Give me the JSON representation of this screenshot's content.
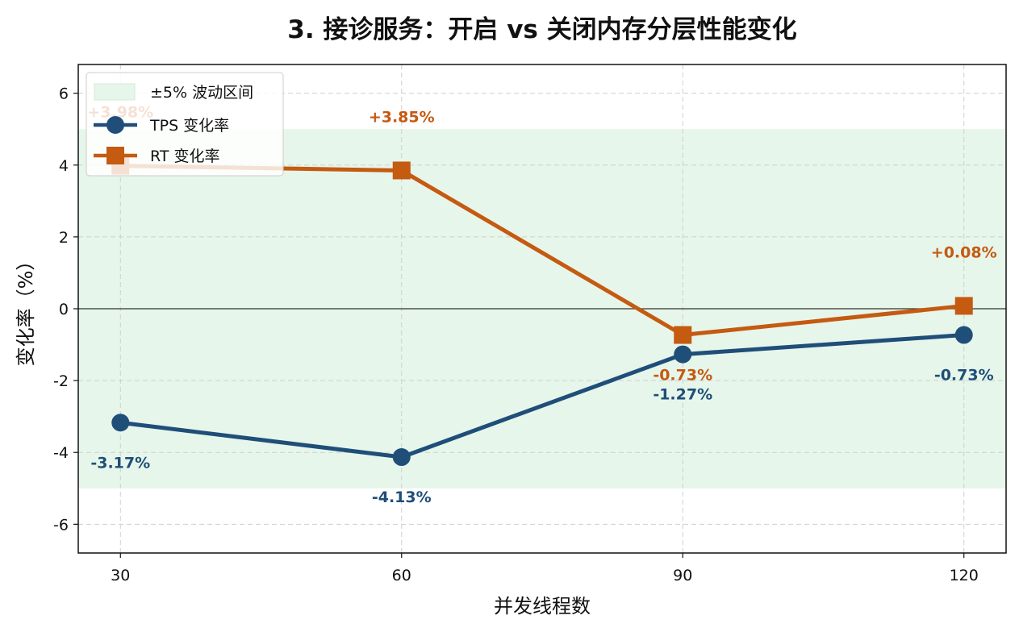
{
  "chart_data": {
    "type": "line",
    "title": "3. 接诊服务：开启 vs 关闭内存分层性能变化",
    "xlabel": "并发线程数",
    "ylabel": "变化率（%）",
    "x": [
      30,
      60,
      90,
      120
    ],
    "x_tick_labels": [
      "30",
      "60",
      "90",
      "120"
    ],
    "xlim": [
      25.5,
      124.5
    ],
    "ylim": [
      -6.8,
      6.8
    ],
    "y_ticks": [
      -6,
      -4,
      -2,
      0,
      2,
      4,
      6
    ],
    "y_tick_labels": [
      "-6",
      "-4",
      "-2",
      "0",
      "2",
      "4",
      "6"
    ],
    "grid": true,
    "band": {
      "label": "±5% 波动区间",
      "low": -5,
      "high": 5,
      "color": "#e6f6ea"
    },
    "zero_line": true,
    "legend_position": "upper-left",
    "series": [
      {
        "name": "TPS 变化率",
        "values": [
          -3.17,
          -4.13,
          -1.27,
          -0.73
        ],
        "labels": [
          "-3.17%",
          "-4.13%",
          "-1.27%",
          "-0.73%"
        ],
        "color": "#1f4e79",
        "marker": "circle"
      },
      {
        "name": "RT 变化率",
        "values": [
          3.98,
          3.85,
          -0.73,
          0.08
        ],
        "labels": [
          "+3.98%",
          "+3.85%",
          "-0.73%",
          "+0.08%"
        ],
        "color": "#c55a11",
        "marker": "square"
      }
    ]
  }
}
